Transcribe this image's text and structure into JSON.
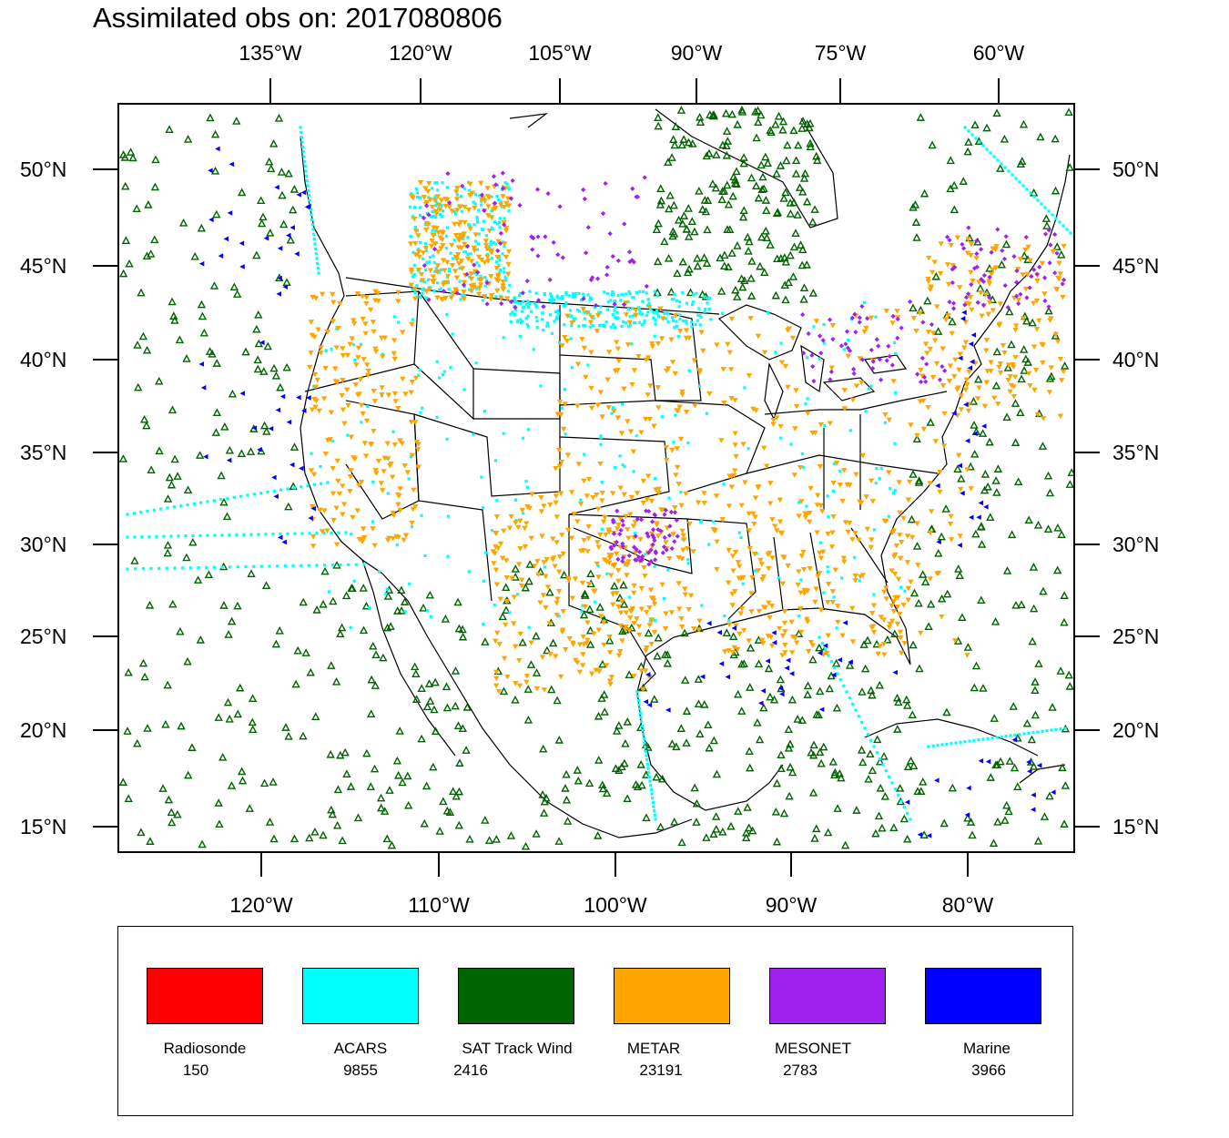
{
  "title": "Assimilated obs on: 2017080806",
  "top_axis": {
    "labels": [
      "135°W",
      "120°W",
      "105°W",
      "90°W",
      "75°W",
      "60°W"
    ]
  },
  "bottom_axis": {
    "labels": [
      "120°W",
      "110°W",
      "100°W",
      "90°W",
      "80°W"
    ]
  },
  "lat_axis": {
    "labels": [
      "50°N",
      "45°N",
      "40°N",
      "35°N",
      "30°N",
      "25°N",
      "20°N",
      "15°N"
    ]
  },
  "legend": {
    "entries": [
      {
        "name": "Radiosonde",
        "count": "150",
        "color": "#ff0000",
        "marker": "none"
      },
      {
        "name": "ACARS",
        "count": "9855",
        "color": "#00ffff",
        "marker": "dot"
      },
      {
        "name": "SAT Track Wind",
        "count": "2416",
        "color": "#006400",
        "marker": "triangle-up-open"
      },
      {
        "name": "METAR",
        "count": "23191",
        "color": "#ffa500",
        "marker": "triangle-down"
      },
      {
        "name": "MESONET",
        "count": "2783",
        "color": "#a020f0",
        "marker": "diamond"
      },
      {
        "name": "Marine",
        "count": "3966",
        "color": "#0000ff",
        "marker": "triangle-left"
      }
    ]
  },
  "map": {
    "region": "Contiguous United States, Gulf of Mexico and adjacent oceans",
    "lat_range": [
      14,
      53
    ],
    "lon_range": [
      -128,
      -57
    ]
  }
}
